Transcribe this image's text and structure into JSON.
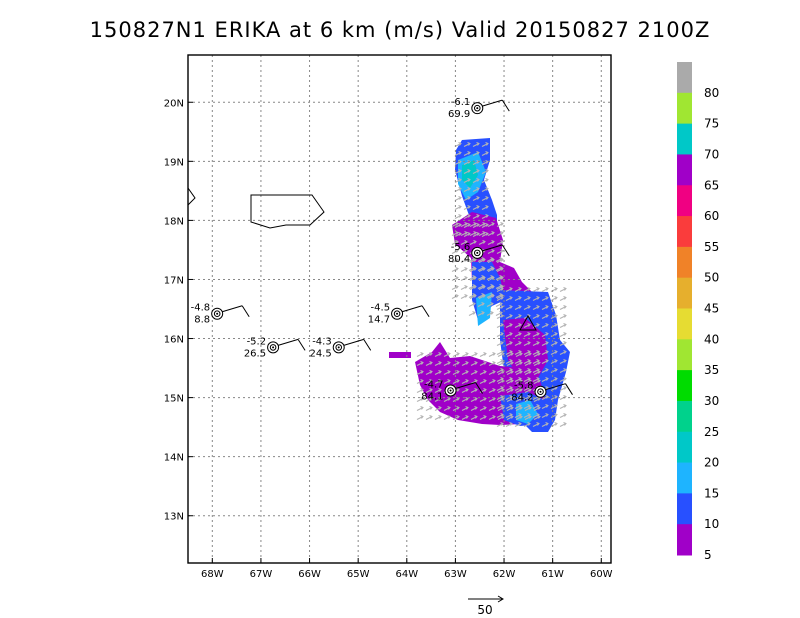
{
  "title": "150827N1 ERIKA at 6 km (m/s) Valid 20150827 2100Z",
  "map": {
    "lon_range": [
      -68.5,
      -59.8
    ],
    "lat_range": [
      12.2,
      20.8
    ],
    "lon_ticks": [
      "68W",
      "67W",
      "66W",
      "65W",
      "64W",
      "63W",
      "62W",
      "61W",
      "60W"
    ],
    "lat_ticks": [
      "13N",
      "14N",
      "15N",
      "16N",
      "17N",
      "18N",
      "19N",
      "20N"
    ],
    "grid": "dotted"
  },
  "stations": [
    {
      "name": "station-1",
      "lon": -62.55,
      "lat": 19.9,
      "top": "-6.1",
      "bottom": "69.9"
    },
    {
      "name": "station-2",
      "lon": -62.55,
      "lat": 17.45,
      "top": "-5.6",
      "bottom": "80.4"
    },
    {
      "name": "station-3",
      "lon": -67.9,
      "lat": 16.42,
      "top": "-4.8",
      "bottom": "8.8"
    },
    {
      "name": "station-4",
      "lon": -66.75,
      "lat": 15.85,
      "top": "-5.2",
      "bottom": "26.5"
    },
    {
      "name": "station-5",
      "lon": -65.4,
      "lat": 15.85,
      "top": "-4.3",
      "bottom": "24.5"
    },
    {
      "name": "station-6",
      "lon": -64.2,
      "lat": 16.42,
      "top": "-4.5",
      "bottom": "14.7"
    },
    {
      "name": "station-7",
      "lon": -63.1,
      "lat": 15.12,
      "top": "-4.7",
      "bottom": "84.1"
    },
    {
      "name": "station-8",
      "lon": -61.25,
      "lat": 15.1,
      "top": "-5.8",
      "bottom": "84.2"
    }
  ],
  "colorbar": {
    "labels": [
      "80",
      "75",
      "70",
      "65",
      "60",
      "55",
      "50",
      "45",
      "40",
      "35",
      "30",
      "25",
      "20",
      "15",
      "10",
      "5"
    ],
    "colors": [
      "#aaaaaa",
      "#a0e632",
      "#00c8c8",
      "#a000c8",
      "#f00082",
      "#fa3c3c",
      "#f08228",
      "#e6af2d",
      "#e6dc32",
      "#a0e632",
      "#00dc00",
      "#00d28c",
      "#00c8c8",
      "#1eb4ff",
      "#2850ff",
      "#a000c8"
    ]
  },
  "reference_vector": {
    "label": "50"
  }
}
